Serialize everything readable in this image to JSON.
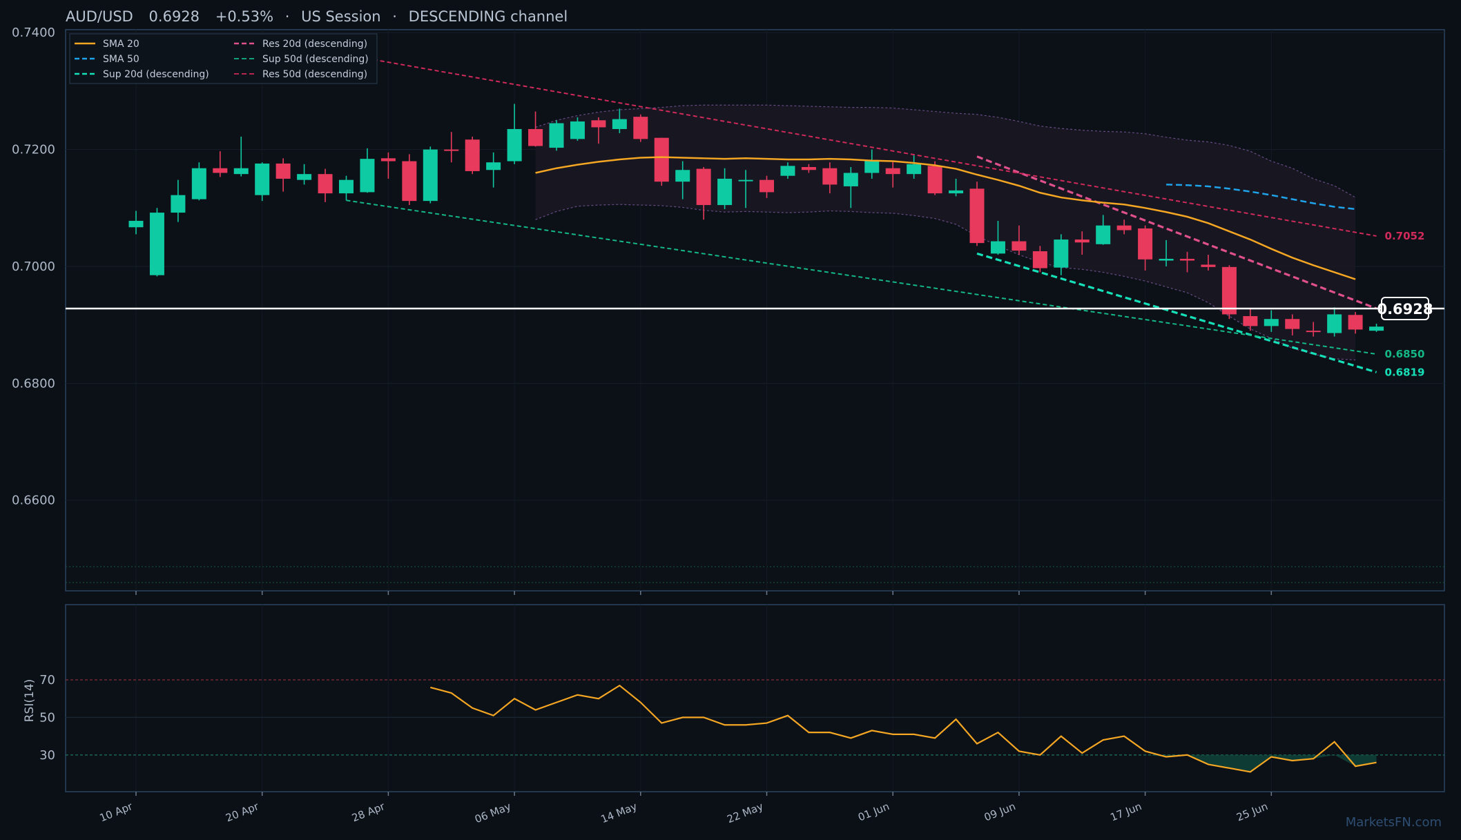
{
  "header": {
    "pair": "AUD/USD",
    "price": "0.6928",
    "change": "+0.53%",
    "session": "US Session",
    "channel": "DESCENDING channel",
    "sep": "·"
  },
  "watermark": "MarketsFN.com",
  "colors": {
    "background": "#0b0f16",
    "up": "#0fcba3",
    "down": "#e83a5c",
    "sma20": "#f5a623",
    "sma50": "#1fa3ea",
    "sup20": "#16e0b8",
    "res20": "#e0508c",
    "sup50": "#14b885",
    "res50": "#d02a5a",
    "band": "#7d5a9e",
    "price_line": "#ffffff",
    "rsi": "#f5a623"
  },
  "chart_data": {
    "type": "candlestick",
    "title": "AUD/USD 0.6928 +0.53% · US Session · DESCENDING channel",
    "price_axis": {
      "ylim": [
        0.6445,
        0.7405
      ],
      "ticks": [
        "0.7400",
        "0.7200",
        "0.7000",
        "0.6800",
        "0.6600"
      ],
      "tick_values": [
        0.74,
        0.72,
        0.7,
        0.68,
        0.66
      ]
    },
    "x_axis": {
      "date_labels": [
        "10 Apr",
        "20 Apr",
        "28 Apr",
        "06 May",
        "14 May",
        "22 May",
        "01 Jun",
        "09 Jun",
        "17 Jun",
        "25 Jun"
      ],
      "date_label_bar_index": [
        0,
        6,
        12,
        18,
        24,
        30,
        36,
        42,
        48,
        54
      ]
    },
    "candles": [
      {
        "o": 0.7067,
        "h": 0.7095,
        "l": 0.7055,
        "c": 0.7078
      },
      {
        "o": 0.6985,
        "h": 0.71,
        "l": 0.6983,
        "c": 0.7092
      },
      {
        "o": 0.7092,
        "h": 0.7148,
        "l": 0.7076,
        "c": 0.7122
      },
      {
        "o": 0.7115,
        "h": 0.7178,
        "l": 0.7113,
        "c": 0.7168
      },
      {
        "o": 0.7168,
        "h": 0.7197,
        "l": 0.7153,
        "c": 0.716
      },
      {
        "o": 0.7158,
        "h": 0.7222,
        "l": 0.7154,
        "c": 0.7168
      },
      {
        "o": 0.7122,
        "h": 0.7178,
        "l": 0.7112,
        "c": 0.7176
      },
      {
        "o": 0.7176,
        "h": 0.7185,
        "l": 0.7128,
        "c": 0.715
      },
      {
        "o": 0.7148,
        "h": 0.7175,
        "l": 0.714,
        "c": 0.7158
      },
      {
        "o": 0.7158,
        "h": 0.7167,
        "l": 0.711,
        "c": 0.7125
      },
      {
        "o": 0.7125,
        "h": 0.7155,
        "l": 0.7113,
        "c": 0.7148
      },
      {
        "o": 0.7127,
        "h": 0.7202,
        "l": 0.7126,
        "c": 0.7184
      },
      {
        "o": 0.7185,
        "h": 0.7195,
        "l": 0.715,
        "c": 0.718
      },
      {
        "o": 0.718,
        "h": 0.7192,
        "l": 0.7105,
        "c": 0.7112
      },
      {
        "o": 0.7112,
        "h": 0.7205,
        "l": 0.7108,
        "c": 0.72
      },
      {
        "o": 0.72,
        "h": 0.723,
        "l": 0.7178,
        "c": 0.7198
      },
      {
        "o": 0.7217,
        "h": 0.7222,
        "l": 0.7158,
        "c": 0.7163
      },
      {
        "o": 0.7165,
        "h": 0.7195,
        "l": 0.7135,
        "c": 0.7178
      },
      {
        "o": 0.718,
        "h": 0.7278,
        "l": 0.7175,
        "c": 0.7235
      },
      {
        "o": 0.7235,
        "h": 0.7265,
        "l": 0.7205,
        "c": 0.7206
      },
      {
        "o": 0.7203,
        "h": 0.725,
        "l": 0.7198,
        "c": 0.7245
      },
      {
        "o": 0.7218,
        "h": 0.7255,
        "l": 0.7215,
        "c": 0.7248
      },
      {
        "o": 0.725,
        "h": 0.7255,
        "l": 0.721,
        "c": 0.7238
      },
      {
        "o": 0.7235,
        "h": 0.727,
        "l": 0.7228,
        "c": 0.7252
      },
      {
        "o": 0.7256,
        "h": 0.726,
        "l": 0.7213,
        "c": 0.7218
      },
      {
        "o": 0.722,
        "h": 0.722,
        "l": 0.7138,
        "c": 0.7145
      },
      {
        "o": 0.7145,
        "h": 0.718,
        "l": 0.7115,
        "c": 0.7165
      },
      {
        "o": 0.7167,
        "h": 0.717,
        "l": 0.708,
        "c": 0.7105
      },
      {
        "o": 0.7105,
        "h": 0.7168,
        "l": 0.7098,
        "c": 0.715
      },
      {
        "o": 0.7147,
        "h": 0.7165,
        "l": 0.71,
        "c": 0.7148
      },
      {
        "o": 0.7148,
        "h": 0.7155,
        "l": 0.7117,
        "c": 0.7127
      },
      {
        "o": 0.7155,
        "h": 0.7178,
        "l": 0.715,
        "c": 0.7172
      },
      {
        "o": 0.717,
        "h": 0.7175,
        "l": 0.716,
        "c": 0.7165
      },
      {
        "o": 0.7168,
        "h": 0.7178,
        "l": 0.7125,
        "c": 0.714
      },
      {
        "o": 0.7137,
        "h": 0.717,
        "l": 0.71,
        "c": 0.716
      },
      {
        "o": 0.716,
        "h": 0.72,
        "l": 0.715,
        "c": 0.7182
      },
      {
        "o": 0.7168,
        "h": 0.718,
        "l": 0.7135,
        "c": 0.7158
      },
      {
        "o": 0.7158,
        "h": 0.719,
        "l": 0.715,
        "c": 0.7175
      },
      {
        "o": 0.7172,
        "h": 0.718,
        "l": 0.7122,
        "c": 0.7125
      },
      {
        "o": 0.7125,
        "h": 0.715,
        "l": 0.712,
        "c": 0.713
      },
      {
        "o": 0.7133,
        "h": 0.7145,
        "l": 0.7035,
        "c": 0.704
      },
      {
        "o": 0.7022,
        "h": 0.7078,
        "l": 0.702,
        "c": 0.7043
      },
      {
        "o": 0.7043,
        "h": 0.707,
        "l": 0.702,
        "c": 0.7027
      },
      {
        "o": 0.7026,
        "h": 0.7035,
        "l": 0.699,
        "c": 0.6997
      },
      {
        "o": 0.6998,
        "h": 0.7055,
        "l": 0.6985,
        "c": 0.7046
      },
      {
        "o": 0.7046,
        "h": 0.706,
        "l": 0.702,
        "c": 0.7041
      },
      {
        "o": 0.7038,
        "h": 0.7088,
        "l": 0.7037,
        "c": 0.707
      },
      {
        "o": 0.707,
        "h": 0.708,
        "l": 0.7055,
        "c": 0.7062
      },
      {
        "o": 0.7065,
        "h": 0.707,
        "l": 0.6993,
        "c": 0.7012
      },
      {
        "o": 0.701,
        "h": 0.7045,
        "l": 0.7,
        "c": 0.7013
      },
      {
        "o": 0.7013,
        "h": 0.7025,
        "l": 0.699,
        "c": 0.701
      },
      {
        "o": 0.7003,
        "h": 0.702,
        "l": 0.6993,
        "c": 0.6999
      },
      {
        "o": 0.6999,
        "h": 0.7002,
        "l": 0.691,
        "c": 0.6918
      },
      {
        "o": 0.6915,
        "h": 0.6928,
        "l": 0.689,
        "c": 0.6898
      },
      {
        "o": 0.6898,
        "h": 0.6925,
        "l": 0.6888,
        "c": 0.691
      },
      {
        "o": 0.691,
        "h": 0.6918,
        "l": 0.6882,
        "c": 0.6893
      },
      {
        "o": 0.689,
        "h": 0.6905,
        "l": 0.688,
        "c": 0.6888
      },
      {
        "o": 0.6886,
        "h": 0.693,
        "l": 0.688,
        "c": 0.6918
      },
      {
        "o": 0.6917,
        "h": 0.6922,
        "l": 0.6885,
        "c": 0.6892
      },
      {
        "o": 0.689,
        "h": 0.6902,
        "l": 0.6888,
        "c": 0.6897
      }
    ],
    "sma20": {
      "start_index": 19,
      "values": [
        0.716,
        0.7168,
        0.7174,
        0.7179,
        0.7183,
        0.7186,
        0.7187,
        0.7186,
        0.7185,
        0.7184,
        0.7185,
        0.7184,
        0.7183,
        0.7183,
        0.7184,
        0.7183,
        0.7181,
        0.718,
        0.7177,
        0.7173,
        0.7167,
        0.7157,
        0.7148,
        0.7138,
        0.7126,
        0.7118,
        0.7113,
        0.7109,
        0.7106,
        0.71,
        0.7093,
        0.7085,
        0.7074,
        0.706,
        0.7046,
        0.703,
        0.7015,
        0.7002,
        0.699,
        0.6978
      ]
    },
    "bollinger_upper": {
      "start_index": 19,
      "values": [
        0.7238,
        0.725,
        0.7258,
        0.7264,
        0.7268,
        0.727,
        0.7272,
        0.7275,
        0.7276,
        0.7276,
        0.7276,
        0.7276,
        0.7275,
        0.7274,
        0.7273,
        0.7272,
        0.7272,
        0.7271,
        0.7268,
        0.7265,
        0.7262,
        0.726,
        0.7255,
        0.7248,
        0.724,
        0.7236,
        0.7233,
        0.7231,
        0.723,
        0.7227,
        0.7221,
        0.7216,
        0.7213,
        0.7207,
        0.7197,
        0.718,
        0.7168,
        0.715,
        0.7138,
        0.7118
      ]
    },
    "bollinger_lower": {
      "start_index": 19,
      "values": [
        0.708,
        0.7094,
        0.7103,
        0.7105,
        0.7106,
        0.7105,
        0.7104,
        0.7101,
        0.7096,
        0.7093,
        0.7094,
        0.7093,
        0.7092,
        0.7093,
        0.7095,
        0.7094,
        0.7092,
        0.7091,
        0.7087,
        0.7082,
        0.7072,
        0.7052,
        0.7035,
        0.702,
        0.7007,
        0.6998,
        0.6995,
        0.699,
        0.6983,
        0.6975,
        0.6965,
        0.6955,
        0.6938,
        0.6915,
        0.6893,
        0.6877,
        0.686,
        0.685,
        0.6842,
        0.684
      ]
    },
    "sma50": {
      "start_index": 49,
      "values": [
        0.714,
        0.7139,
        0.7137,
        0.7133,
        0.7128,
        0.7122,
        0.7115,
        0.7108,
        0.7102,
        0.7098
      ]
    },
    "rsi": {
      "label": "RSI(14)",
      "ticks": [
        70,
        50,
        30
      ],
      "ylim": [
        0,
        100
      ],
      "start_index": 14,
      "values": [
        66,
        63,
        55,
        51,
        60,
        54,
        58,
        62,
        60,
        67,
        58,
        47,
        50,
        50,
        46,
        46,
        47,
        51,
        42,
        42,
        39,
        43,
        41,
        41,
        39,
        49,
        36,
        42,
        32,
        30,
        40,
        31,
        38,
        40,
        32,
        29,
        30,
        25,
        23,
        21,
        29,
        27,
        28,
        37,
        24,
        26
      ]
    },
    "trendlines": [
      {
        "name": "Sup 20d (descending)",
        "from": [
          40,
          0.7022
        ],
        "to": [
          59,
          0.6819
        ],
        "end_label": "0.6819"
      },
      {
        "name": "Res 20d (descending)",
        "from": [
          40,
          0.7188
        ],
        "to": [
          59,
          0.6928
        ]
      },
      {
        "name": "Sup 50d (descending)",
        "from": [
          10,
          0.7113
        ],
        "to": [
          59,
          0.685
        ],
        "end_label": "0.6850"
      },
      {
        "name": "Res 50d (descending)",
        "from": [
          10,
          0.7362
        ],
        "to": [
          59,
          0.7052
        ],
        "end_label": "0.7052"
      }
    ],
    "current_price": 0.6928,
    "current_price_label": "0.6928",
    "legend": {
      "placement": "top-left",
      "entries": [
        {
          "label": "SMA 20",
          "color_key": "sma20",
          "dash": "solid"
        },
        {
          "label": "SMA 50",
          "color_key": "sma50",
          "dash": "dashed"
        },
        {
          "label": "Sup 20d (descending)",
          "color_key": "sup20",
          "dash": "dashed"
        },
        {
          "label": "Res 20d (descending)",
          "color_key": "res20",
          "dash": "dashed"
        },
        {
          "label": "Sup 50d (descending)",
          "color_key": "sup50",
          "dash": "dashed"
        },
        {
          "label": "Res 50d (descending)",
          "color_key": "res50",
          "dash": "dashed"
        }
      ]
    }
  }
}
